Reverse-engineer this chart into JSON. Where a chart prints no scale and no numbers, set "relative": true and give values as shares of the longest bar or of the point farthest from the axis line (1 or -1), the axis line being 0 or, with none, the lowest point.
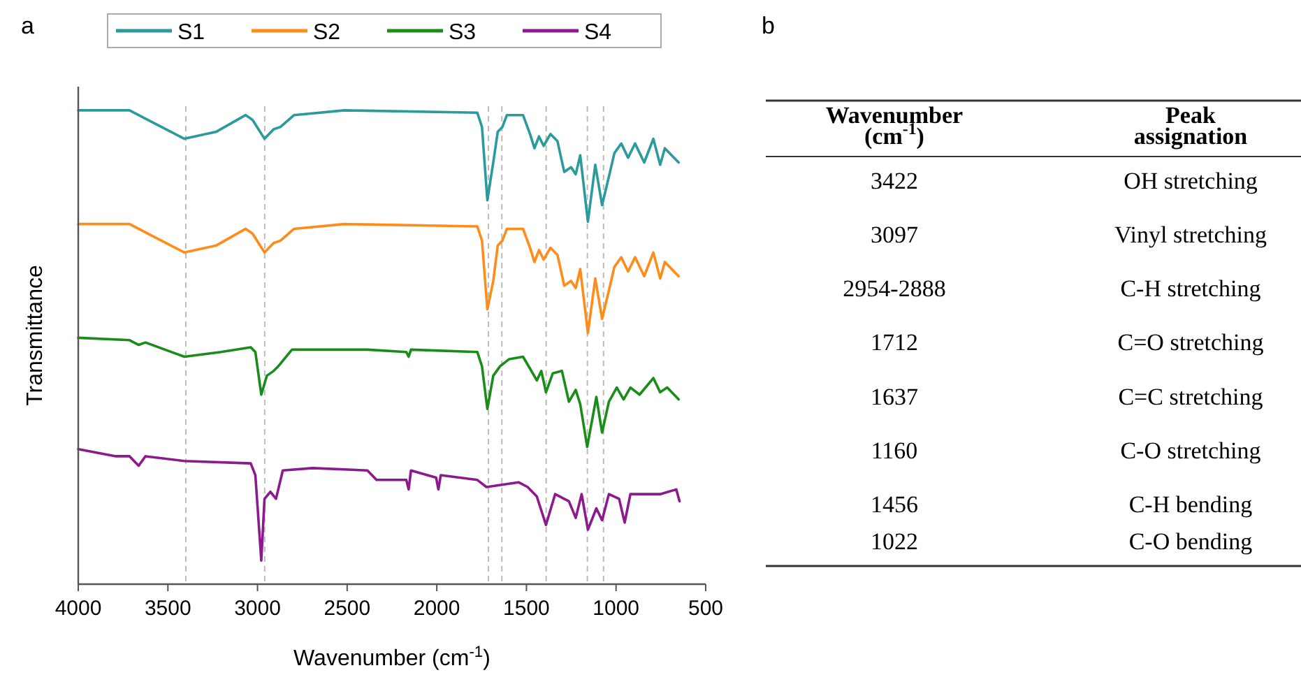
{
  "chart_data": [
    {
      "type": "line",
      "title": "a",
      "xlabel": "Wavenumber (cm$^{-1}$)",
      "ylabel": "Transmittance",
      "relative": true,
      "tick_labels": "x",
      "grid": false,
      "legend": "top",
      "marker": "none",
      "line_style": "solid",
      "xlim": [
        4000,
        500
      ],
      "xticks": [
        4000,
        3500,
        3000,
        2500,
        2000,
        1500,
        1000,
        500
      ],
      "x": [
        4000,
        3714,
        3587,
        3408,
        3229,
        3066,
        3028,
        2961,
        2910,
        2872,
        2796,
        2515,
        1774,
        1748,
        1718,
        1685,
        1660,
        1634,
        1609,
        1519,
        1480,
        1455,
        1430,
        1404,
        1366,
        1327,
        1289,
        1251,
        1225,
        1200,
        1157,
        1116,
        1078,
        1040,
        1009,
        971,
        933,
        894,
        843,
        792,
        754,
        728,
        651
      ],
      "ref_lines": [
        {
          "axis": "x",
          "value": 3400,
          "color": "#bbbbbb",
          "line_style": "dashed"
        },
        {
          "axis": "x",
          "value": 2960,
          "color": "#bbbbbb",
          "line_style": "dashed"
        },
        {
          "axis": "x",
          "value": 1712,
          "color": "#bbbbbb",
          "line_style": "dashed"
        },
        {
          "axis": "x",
          "value": 1637,
          "color": "#bbbbbb",
          "line_style": "dashed"
        },
        {
          "axis": "x",
          "value": 1390,
          "color": "#bbbbbb",
          "line_style": "dashed"
        },
        {
          "axis": "x",
          "value": 1160,
          "color": "#bbbbbb",
          "line_style": "dashed"
        },
        {
          "axis": "x",
          "value": 1070,
          "color": "#bbbbbb",
          "line_style": "dashed"
        }
      ],
      "series": [
        {
          "name": "S1",
          "color": "#2a9a9a",
          "values": [
            1.0,
            1.0,
            0.975,
            0.94,
            0.955,
            0.99,
            0.98,
            0.94,
            0.96,
            0.965,
            0.99,
            1.0,
            0.995,
            0.965,
            0.81,
            0.89,
            0.955,
            0.965,
            0.99,
            0.99,
            0.95,
            0.92,
            0.945,
            0.925,
            0.95,
            0.935,
            0.87,
            0.88,
            0.865,
            0.905,
            0.765,
            0.885,
            0.8,
            0.86,
            0.91,
            0.93,
            0.9,
            0.93,
            0.89,
            0.94,
            0.885,
            0.92,
            0.89
          ]
        },
        {
          "name": "S2",
          "color": "#ff8c1a",
          "values": [
            0.76,
            0.76,
            0.735,
            0.7,
            0.715,
            0.75,
            0.74,
            0.7,
            0.72,
            0.725,
            0.75,
            0.76,
            0.755,
            0.725,
            0.58,
            0.64,
            0.715,
            0.725,
            0.75,
            0.75,
            0.71,
            0.68,
            0.705,
            0.685,
            0.71,
            0.695,
            0.63,
            0.64,
            0.625,
            0.665,
            0.53,
            0.645,
            0.56,
            0.62,
            0.67,
            0.69,
            0.66,
            0.69,
            0.65,
            0.7,
            0.645,
            0.68,
            0.65
          ]
        },
        {
          "name": "S3",
          "color": "#1a8c1a",
          "x": [
            4000,
            3714,
            3663,
            3625,
            3408,
            3204,
            3038,
            3012,
            2979,
            2948,
            2910,
            2884,
            2808,
            2387,
            2170,
            2157,
            2144,
            1774,
            1748,
            1718,
            1685,
            1647,
            1596,
            1519,
            1480,
            1442,
            1417,
            1391,
            1353,
            1302,
            1263,
            1225,
            1200,
            1161,
            1110,
            1078,
            1040,
            996,
            958,
            920,
            869,
            792,
            754,
            715,
            651
          ],
          "values": [
            0.52,
            0.515,
            0.505,
            0.51,
            0.48,
            0.49,
            0.5,
            0.49,
            0.4,
            0.44,
            0.45,
            0.46,
            0.495,
            0.495,
            0.49,
            0.48,
            0.495,
            0.49,
            0.46,
            0.37,
            0.44,
            0.46,
            0.475,
            0.48,
            0.455,
            0.43,
            0.45,
            0.405,
            0.445,
            0.45,
            0.385,
            0.41,
            0.38,
            0.29,
            0.395,
            0.32,
            0.385,
            0.415,
            0.39,
            0.415,
            0.4,
            0.435,
            0.405,
            0.415,
            0.39
          ]
        },
        {
          "name": "S4",
          "color": "#8c1a8c",
          "x": [
            4000,
            3791,
            3714,
            3663,
            3625,
            3408,
            3038,
            3012,
            2979,
            2961,
            2928,
            2897,
            2859,
            2693,
            2387,
            2336,
            2170,
            2157,
            2144,
            2004,
            1991,
            1978,
            1774,
            1723,
            1544,
            1493,
            1442,
            1391,
            1340,
            1263,
            1225,
            1192,
            1157,
            1110,
            1078,
            1040,
            983,
            952,
            920,
            754,
            664,
            646
          ],
          "values": [
            0.285,
            0.27,
            0.27,
            0.25,
            0.27,
            0.26,
            0.255,
            0.23,
            0.05,
            0.18,
            0.195,
            0.18,
            0.24,
            0.245,
            0.24,
            0.22,
            0.22,
            0.2,
            0.24,
            0.225,
            0.2,
            0.23,
            0.22,
            0.205,
            0.215,
            0.205,
            0.185,
            0.125,
            0.19,
            0.175,
            0.14,
            0.19,
            0.115,
            0.16,
            0.135,
            0.19,
            0.18,
            0.13,
            0.19,
            0.19,
            0.2,
            0.175
          ]
        }
      ]
    },
    {
      "type": "other",
      "title": "b",
      "categories": [
        "Wavenumber (cm$^{-1}$)",
        "Peak assignation"
      ],
      "cell_labels": [
        [
          "3422",
          "OH stretching"
        ],
        [
          "3097",
          "Vinyl stretching"
        ],
        [
          "2954-2888",
          "C-H stretching"
        ],
        [
          "1712",
          "C=O stretching"
        ],
        [
          "1637",
          "C=C stretching"
        ],
        [
          "1160",
          "C-O stretching"
        ],
        [
          "1456",
          "C-H bending"
        ],
        [
          "1022",
          "C-O bending"
        ]
      ]
    }
  ]
}
